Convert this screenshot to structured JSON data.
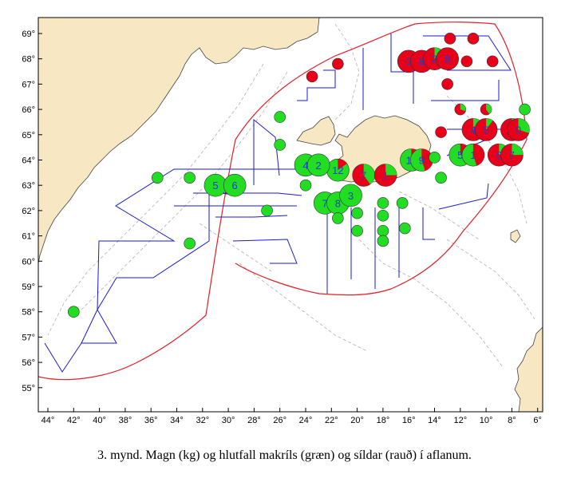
{
  "caption": "3. mynd. Magn (kg) og hlutfall makríls (græn) og síldar (rauð) í aflanum.",
  "colors": {
    "land": "#f7e7c3",
    "sea": "#ffffff",
    "mackerel": "#22dd22",
    "herring": "#e8001a",
    "track": "#1a1ad6",
    "boundary": "#e0202a",
    "depth_contour": "#b0b0b0",
    "label": "#1b3fd1"
  },
  "axes": {
    "lon_ticks": [
      "44°",
      "42°",
      "40°",
      "38°",
      "36°",
      "34°",
      "32°",
      "30°",
      "28°",
      "26°",
      "24°",
      "22°",
      "20°",
      "18°",
      "16°",
      "14°",
      "12°",
      "10°",
      "8°",
      "6°"
    ],
    "lat_ticks": [
      "69°",
      "68°",
      "67°",
      "66°",
      "65°",
      "64°",
      "63°",
      "62°",
      "61°",
      "60°",
      "59°",
      "58°",
      "57°",
      "56°",
      "55°"
    ]
  },
  "stations": [
    {
      "lon": -21.5,
      "lat": 63.6,
      "label": "12",
      "green": 0.85
    },
    {
      "lon": -19.5,
      "lat": 63.4,
      "label": "7",
      "green": 0.4
    },
    {
      "lon": -17.8,
      "lat": 63.4,
      "label": "1",
      "green": 0.25
    },
    {
      "lon": -15.8,
      "lat": 64.0,
      "label": "11",
      "green": 0.75
    },
    {
      "lon": -15.0,
      "lat": 64.0,
      "label": "9",
      "green": 0.55
    },
    {
      "lon": -16.0,
      "lat": 67.9,
      "label": "3",
      "green": 0.0
    },
    {
      "lon": -15.0,
      "lat": 67.9,
      "label": "8",
      "green": 0.0
    },
    {
      "lon": -14.0,
      "lat": 68.0,
      "label": "2",
      "green": 0.1
    },
    {
      "lon": -13.0,
      "lat": 68.0,
      "label": "9",
      "green": 0.0
    },
    {
      "lon": -12.8,
      "lat": 68.8,
      "label": "",
      "green": 0.0
    },
    {
      "lon": -11.0,
      "lat": 68.8,
      "label": "",
      "green": 0.0
    },
    {
      "lon": -11.5,
      "lat": 67.9,
      "label": "",
      "green": 0.0
    },
    {
      "lon": -9.5,
      "lat": 67.9,
      "label": "",
      "green": 0.0
    },
    {
      "lon": -13.0,
      "lat": 67.0,
      "label": "",
      "green": 0.0
    },
    {
      "lon": -23.5,
      "lat": 67.3,
      "label": "",
      "green": 0.0
    },
    {
      "lon": -21.5,
      "lat": 67.8,
      "label": "",
      "green": 0.0
    },
    {
      "lon": -26.0,
      "lat": 65.7,
      "label": "",
      "green": 1.0
    },
    {
      "lon": -26.0,
      "lat": 64.6,
      "label": "",
      "green": 1.0
    },
    {
      "lon": -24.0,
      "lat": 63.8,
      "label": "4",
      "green": 1.0
    },
    {
      "lon": -23.0,
      "lat": 63.8,
      "label": "2",
      "green": 1.0
    },
    {
      "lon": -31.0,
      "lat": 63.0,
      "label": "5",
      "green": 1.0
    },
    {
      "lon": -29.5,
      "lat": 63.0,
      "label": "6",
      "green": 1.0
    },
    {
      "lon": -24.0,
      "lat": 63.0,
      "label": "",
      "green": 1.0
    },
    {
      "lon": -22.5,
      "lat": 62.3,
      "label": "7",
      "green": 1.0
    },
    {
      "lon": -21.5,
      "lat": 62.3,
      "label": "8",
      "green": 1.0
    },
    {
      "lon": -20.5,
      "lat": 62.6,
      "label": "3",
      "green": 1.0
    },
    {
      "lon": -18.0,
      "lat": 62.3,
      "label": "",
      "green": 1.0
    },
    {
      "lon": -16.5,
      "lat": 62.3,
      "label": "",
      "green": 1.0
    },
    {
      "lon": -21.5,
      "lat": 61.7,
      "label": "",
      "green": 1.0
    },
    {
      "lon": -20.0,
      "lat": 61.9,
      "label": "",
      "green": 1.0
    },
    {
      "lon": -18.0,
      "lat": 61.8,
      "label": "",
      "green": 1.0
    },
    {
      "lon": -16.3,
      "lat": 61.3,
      "label": "",
      "green": 1.0
    },
    {
      "lon": -20.0,
      "lat": 61.2,
      "label": "",
      "green": 1.0
    },
    {
      "lon": -18.0,
      "lat": 61.2,
      "label": "",
      "green": 1.0
    },
    {
      "lon": -18.0,
      "lat": 60.8,
      "label": "",
      "green": 1.0
    },
    {
      "lon": -14.0,
      "lat": 64.1,
      "label": "",
      "green": 1.0
    },
    {
      "lon": -13.5,
      "lat": 63.3,
      "label": "",
      "green": 1.0
    },
    {
      "lon": -12.0,
      "lat": 64.2,
      "label": "5",
      "green": 0.75
    },
    {
      "lon": -11.0,
      "lat": 64.2,
      "label": "1",
      "green": 0.55
    },
    {
      "lon": -9.0,
      "lat": 64.2,
      "label": "6",
      "green": 0.25
    },
    {
      "lon": -8.0,
      "lat": 64.2,
      "label": "7",
      "green": 0.25
    },
    {
      "lon": -13.5,
      "lat": 65.1,
      "label": "",
      "green": 0.0
    },
    {
      "lon": -11.0,
      "lat": 65.2,
      "label": "4",
      "green": 0.1
    },
    {
      "lon": -10.0,
      "lat": 65.2,
      "label": "5",
      "green": 0.1
    },
    {
      "lon": -8.0,
      "lat": 65.2,
      "label": "1",
      "green": 0.3
    },
    {
      "lon": -7.5,
      "lat": 65.2,
      "label": "0",
      "green": 0.3
    },
    {
      "lon": -12.0,
      "lat": 66.0,
      "label": "",
      "green": 0.3
    },
    {
      "lon": -10.0,
      "lat": 66.0,
      "label": "",
      "green": 0.4
    },
    {
      "lon": -7.0,
      "lat": 66.0,
      "label": "",
      "green": 1.0
    },
    {
      "lon": -35.5,
      "lat": 63.3,
      "label": "",
      "green": 1.0
    },
    {
      "lon": -33.0,
      "lat": 63.3,
      "label": "",
      "green": 1.0
    },
    {
      "lon": -33.0,
      "lat": 60.7,
      "label": "",
      "green": 1.0
    },
    {
      "lon": -42.0,
      "lat": 58.0,
      "label": "",
      "green": 1.0
    },
    {
      "lon": -27.0,
      "lat": 62.0,
      "label": "",
      "green": 1.0
    }
  ]
}
